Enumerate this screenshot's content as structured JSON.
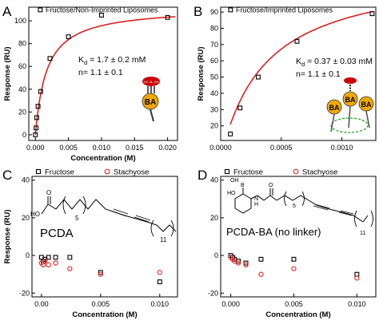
{
  "chart_data": [
    {
      "panel": "A",
      "type": "scatter",
      "xlabel": "Concentration (M)",
      "ylabel": "Response (RU)",
      "xlim": [
        -0.001,
        0.0215
      ],
      "ylim": [
        -5,
        112
      ],
      "xticks": [
        0.0,
        0.005,
        0.01,
        0.015,
        0.02
      ],
      "xtick_labels": [
        "0.000",
        "0.005",
        "0.010",
        "0.015",
        "0.020"
      ],
      "yticks": [
        0,
        20,
        40,
        60,
        80,
        100
      ],
      "legend": "top-right",
      "series": [
        {
          "name": "Fructose/Non-Imprinted Liposomes",
          "marker": "square",
          "x": [
            0.0,
            0.0001,
            0.0002,
            0.0004,
            0.0008,
            0.0022,
            0.005,
            0.01,
            0.02
          ],
          "y": [
            0,
            6,
            15,
            25,
            38,
            67,
            86,
            105,
            103
          ]
        },
        {
          "name": "fit",
          "line": true,
          "color": "#e02020",
          "kd": 0.0017,
          "rmax": 112
        }
      ],
      "annotations": [
        {
          "text": "K",
          "sub": "d",
          "rest": "= 1.7 ± 0.2 mM"
        },
        {
          "text": "n= 1.1 ± 0.1"
        }
      ]
    },
    {
      "panel": "B",
      "type": "scatter",
      "xlabel": "",
      "ylabel": "Response (RU)",
      "xlim": [
        0,
        0.00128
      ],
      "ylim": [
        11,
        93
      ],
      "xticks": [
        0.0,
        0.0005,
        0.001
      ],
      "xtick_labels": [
        "0.0000",
        "0.0005",
        "0.0010"
      ],
      "yticks": [
        20,
        30,
        40,
        50,
        60,
        70,
        80,
        90
      ],
      "legend": "top-right",
      "series": [
        {
          "name": "Fructose/Imprinted Liposomes",
          "marker": "square",
          "x": [
            8e-05,
            0.00016,
            0.00031,
            0.00063,
            0.00125
          ],
          "y": [
            15,
            31,
            50,
            72,
            89
          ]
        },
        {
          "name": "fit",
          "line": true,
          "color": "#e02020",
          "kd": 0.00037,
          "rmax": 117
        }
      ],
      "annotations": [
        {
          "text": "K",
          "sub": "d",
          "rest": "= 0.37 ± 0.03 mM"
        },
        {
          "text": "n= 1.1 ± 0.1"
        }
      ]
    },
    {
      "panel": "C",
      "type": "scatter",
      "xlabel": "Concentration (M)",
      "ylabel": "Response (RU)",
      "xlim": [
        -0.0008,
        0.0115
      ],
      "ylim": [
        -22,
        42
      ],
      "xticks": [
        0.0,
        0.005,
        0.01
      ],
      "xtick_labels": [
        "0.00",
        "0.005",
        "0.010"
      ],
      "yticks": [
        -20,
        0,
        20,
        40
      ],
      "legend": "top",
      "label": "PCDA",
      "series": [
        {
          "name": "Fructose",
          "marker": "square",
          "x": [
            0.0,
            0.00015,
            0.0003,
            0.0006,
            0.0012,
            0.0024,
            0.005,
            0.01
          ],
          "y": [
            -1,
            -3,
            -2,
            -1,
            -1,
            -1,
            -9,
            -14
          ]
        },
        {
          "name": "Stachyose",
          "marker": "circle",
          "color": "#e02020",
          "x": [
            0.0,
            0.00015,
            0.0003,
            0.0006,
            0.0012,
            0.0024,
            0.005,
            0.01
          ],
          "y": [
            -4,
            -5,
            -3,
            -5,
            -4,
            -7,
            -10,
            -9
          ]
        }
      ]
    },
    {
      "panel": "D",
      "type": "scatter",
      "xlabel": "Concentration (M)",
      "ylabel": "",
      "xlim": [
        -0.0008,
        0.0115
      ],
      "ylim": [
        -22,
        42
      ],
      "xticks": [
        0.0,
        0.005,
        0.01
      ],
      "xtick_labels": [
        "0.000",
        "0.005",
        "0.010"
      ],
      "yticks": [
        -20,
        0,
        20,
        40
      ],
      "legend": "top",
      "label": "PCDA-BA (no linker)",
      "series": [
        {
          "name": "Fructose",
          "marker": "square",
          "x": [
            0.0,
            0.00015,
            0.0003,
            0.0006,
            0.0012,
            0.0024,
            0.005,
            0.01
          ],
          "y": [
            0,
            -1,
            -2,
            -3,
            -4,
            -2,
            -2,
            -10
          ]
        },
        {
          "name": "Stachyose",
          "marker": "circle",
          "color": "#e02020",
          "x": [
            0.0,
            0.00015,
            0.0003,
            0.0006,
            0.0012,
            0.0024,
            0.005,
            0.01
          ],
          "y": [
            -1,
            -2,
            -3,
            -4,
            -5,
            -10,
            -7,
            -12
          ]
        }
      ]
    }
  ],
  "panel_letters": [
    "A",
    "B",
    "C",
    "D"
  ],
  "structure_labels": {
    "five": "5",
    "eleven": "11",
    "ba": "BA",
    "boronic": "HO–B–OH"
  },
  "colors": {
    "fit": "#e02020",
    "dashed": "#2aa02a",
    "ba_ball": "#f0a800",
    "red_cap": "#cc0000"
  }
}
